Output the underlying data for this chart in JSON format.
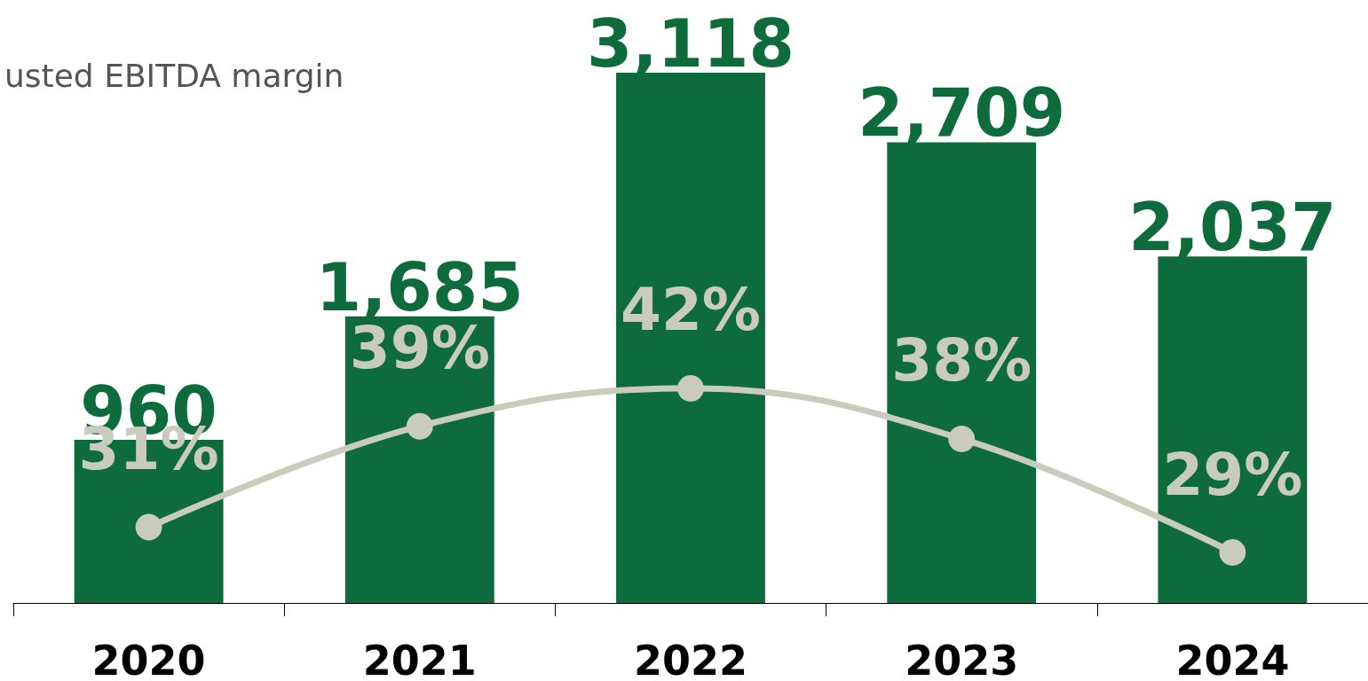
{
  "chart_data": {
    "type": "bar",
    "title": "usted EBITDA margin",
    "categories": [
      "2020",
      "2021",
      "2022",
      "2023",
      "2024"
    ],
    "series": [
      {
        "color": "#0e6b3b",
        "values": [
          960,
          1685,
          3118,
          2709,
          2037
        ],
        "value_labels": [
          "960",
          "1,685",
          "3,118",
          "2,709",
          "2,037"
        ]
      },
      {
        "type": "line",
        "axis": "y2",
        "color": "#c9cbbb",
        "values": [
          31,
          39,
          42,
          38,
          29
        ],
        "value_labels": [
          "31%",
          "39%",
          "42%",
          "38%",
          "29%"
        ]
      }
    ],
    "ylim": [
      0,
      3118
    ],
    "y2lim": [
      25,
      67
    ],
    "grid": false,
    "tick_labels": "x",
    "marker": "circle",
    "line_style": "solid"
  }
}
